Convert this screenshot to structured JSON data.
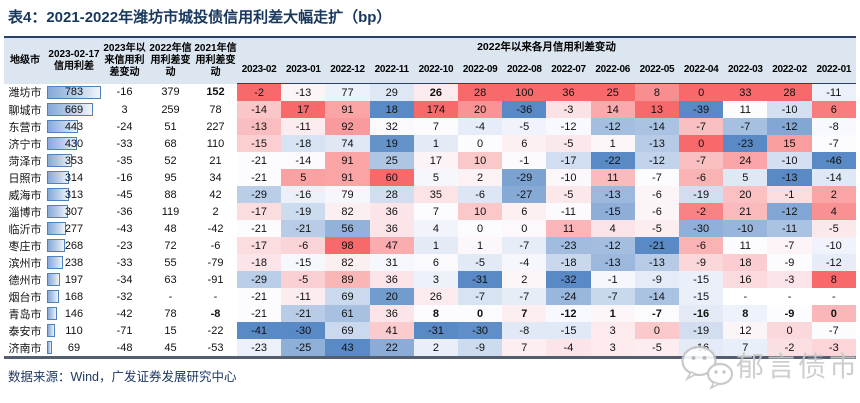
{
  "title": "表4：2021-2022年潍坊市城投债信用利差大幅走扩（bp）",
  "footer": {
    "source": "数据来源：Wind，广发证券发展研究中心"
  },
  "watermark": {
    "label": "郁言债市",
    "icon": "wechat-icon"
  },
  "colors": {
    "scale_max_red": "#F8696B",
    "scale_mid_white": "#FCFCFF",
    "scale_min_blue": "#5A8AC6",
    "header_bg": "#DCE6F1",
    "border_navy": "#2A3F66",
    "title_navy": "#17375E",
    "bar_border": "#4F81BD",
    "bar_fill": "#86A9D9",
    "watermark_gray": "#C9C9C9"
  },
  "table": {
    "headers": {
      "city": "地级市",
      "spread": "2023-02-17\n信用利差",
      "chg2023": "2023年以来信用利差变动",
      "chg2022": "2022年信用利差变动",
      "chg2021": "2021年信用利差变动",
      "month_group": "2022年以来各月信用利差变动",
      "months": [
        "2023-02",
        "2023-01",
        "2022-12",
        "2022-11",
        "2022-10",
        "2022-09",
        "2022-08",
        "2022-07",
        "2022-06",
        "2022-05",
        "2022-04",
        "2022-03",
        "2022-02",
        "2022-01"
      ]
    },
    "spread_bar_max": 783,
    "rows": [
      {
        "city": "潍坊市",
        "spread": 783,
        "chg2023": -16,
        "chg2022": 379,
        "chg2021": 152,
        "monthly": [
          -2,
          -13,
          77,
          29,
          26,
          28,
          100,
          36,
          25,
          8,
          0,
          33,
          28,
          -11
        ],
        "bold": [
          "chg2021",
          "m4"
        ]
      },
      {
        "city": "聊城市",
        "spread": 669,
        "chg2023": 3,
        "chg2022": 259,
        "chg2021": 78,
        "monthly": [
          -14,
          17,
          91,
          18,
          174,
          20,
          -36,
          -3,
          14,
          13,
          -39,
          11,
          -10,
          6
        ],
        "bold": []
      },
      {
        "city": "东营市",
        "spread": 443,
        "chg2023": -24,
        "chg2022": 51,
        "chg2021": 227,
        "monthly": [
          -13,
          -11,
          92,
          32,
          7,
          -4,
          -5,
          -12,
          -12,
          -14,
          -7,
          -7,
          -12,
          -8
        ],
        "bold": []
      },
      {
        "city": "济宁市",
        "spread": 430,
        "chg2023": -33,
        "chg2022": 68,
        "chg2021": 110,
        "monthly": [
          -15,
          -18,
          74,
          19,
          1,
          0,
          6,
          -5,
          1,
          -13,
          0,
          -23,
          15,
          -7
        ],
        "bold": []
      },
      {
        "city": "菏泽市",
        "spread": 353,
        "chg2023": -35,
        "chg2022": 52,
        "chg2021": 21,
        "monthly": [
          -21,
          -14,
          91,
          25,
          17,
          10,
          -1,
          -17,
          -22,
          -12,
          -7,
          24,
          -10,
          -46
        ],
        "bold": []
      },
      {
        "city": "日照市",
        "spread": 314,
        "chg2023": -16,
        "chg2022": 95,
        "chg2021": 34,
        "monthly": [
          -21,
          5,
          91,
          60,
          5,
          2,
          -29,
          -10,
          11,
          -7,
          -6,
          5,
          -13,
          -14
        ],
        "bold": []
      },
      {
        "city": "威海市",
        "spread": 313,
        "chg2023": -45,
        "chg2022": 88,
        "chg2021": 42,
        "monthly": [
          -29,
          -16,
          79,
          28,
          35,
          -6,
          -27,
          -5,
          -13,
          -6,
          -19,
          20,
          -1,
          2
        ],
        "bold": []
      },
      {
        "city": "淄博市",
        "spread": 307,
        "chg2023": -36,
        "chg2022": 119,
        "chg2021": 2,
        "monthly": [
          -17,
          -19,
          82,
          36,
          7,
          10,
          6,
          -11,
          -15,
          -6,
          -2,
          21,
          -12,
          4
        ],
        "bold": []
      },
      {
        "city": "临沂市",
        "spread": 277,
        "chg2023": -43,
        "chg2022": 48,
        "chg2021": -42,
        "monthly": [
          -21,
          -21,
          56,
          36,
          4,
          0,
          0,
          11,
          4,
          -5,
          -30,
          -10,
          -11,
          -5
        ],
        "bold": []
      },
      {
        "city": "枣庄市",
        "spread": 268,
        "chg2023": -23,
        "chg2022": 72,
        "chg2021": -6,
        "monthly": [
          -17,
          -6,
          98,
          47,
          1,
          1,
          -7,
          -23,
          -12,
          -21,
          -6,
          11,
          -7,
          -10
        ],
        "bold": []
      },
      {
        "city": "滨州市",
        "spread": 238,
        "chg2023": -33,
        "chg2022": 55,
        "chg2021": -79,
        "monthly": [
          -18,
          -15,
          82,
          31,
          6,
          -5,
          -4,
          -18,
          -13,
          -13,
          -9,
          18,
          -9,
          -12
        ],
        "bold": []
      },
      {
        "city": "德州市",
        "spread": 197,
        "chg2023": -34,
        "chg2022": 63,
        "chg2021": -91,
        "monthly": [
          -29,
          -5,
          89,
          36,
          3,
          -31,
          2,
          -32,
          -1,
          -9,
          -15,
          16,
          -3,
          8
        ],
        "bold": []
      },
      {
        "city": "烟台市",
        "spread": 168,
        "chg2023": -32,
        "chg2022": "-",
        "chg2021": "-",
        "monthly": [
          -21,
          -11,
          69,
          20,
          26,
          -7,
          -7,
          -24,
          -7,
          -14,
          -15,
          "-",
          "-",
          "-"
        ],
        "bold": []
      },
      {
        "city": "青岛市",
        "spread": 146,
        "chg2023": -42,
        "chg2022": 78,
        "chg2021": -8,
        "monthly": [
          -21,
          -21,
          61,
          36,
          8,
          0,
          7,
          -12,
          1,
          -7,
          -16,
          8,
          -9,
          0
        ],
        "bold": [
          "chg2021",
          "m4",
          "m5",
          "m6",
          "m7",
          "m8",
          "m9",
          "m10",
          "m11",
          "m12",
          "m13"
        ]
      },
      {
        "city": "泰安市",
        "spread": 110,
        "chg2023": -71,
        "chg2022": 15,
        "chg2021": -22,
        "monthly": [
          -41,
          -30,
          69,
          41,
          -31,
          -30,
          -8,
          -15,
          3,
          0,
          -19,
          12,
          0,
          -7
        ],
        "bold": []
      },
      {
        "city": "济南市",
        "spread": 69,
        "chg2023": -48,
        "chg2022": 45,
        "chg2021": -53,
        "monthly": [
          -23,
          -25,
          43,
          22,
          2,
          -9,
          7,
          -4,
          3,
          -5,
          -16,
          7,
          -2,
          -3
        ],
        "bold": []
      }
    ]
  }
}
